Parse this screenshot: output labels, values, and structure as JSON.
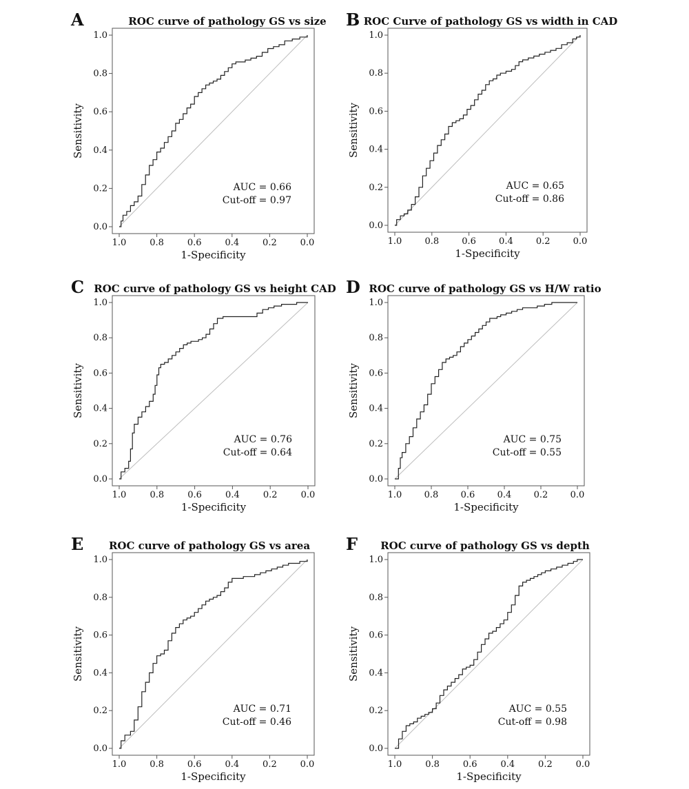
{
  "chart_data": [
    {
      "panel": "A",
      "type": "line",
      "title": "ROC curve of pathology GS vs size",
      "xlabel": "1-Specificity",
      "ylabel": "Sensitivity",
      "xlim": [
        1.0,
        0.0
      ],
      "ylim": [
        0.0,
        1.0
      ],
      "xticks": [
        "1.0",
        "0.8",
        "0.6",
        "0.4",
        "0.2",
        "0.0"
      ],
      "yticks": [
        "0.0",
        "0.2",
        "0.4",
        "0.6",
        "0.8",
        "1.0"
      ],
      "grid": false,
      "diagonal": true,
      "auc_text": "AUC = 0.66",
      "cutoff_text": "Cut-off = 0.97",
      "series": [
        {
          "x": [
            1.0,
            0.99,
            0.98,
            0.96,
            0.94,
            0.92,
            0.9,
            0.88,
            0.86,
            0.84,
            0.82,
            0.8,
            0.78,
            0.76,
            0.74,
            0.72,
            0.7,
            0.68,
            0.66,
            0.64,
            0.62,
            0.6,
            0.58,
            0.56,
            0.54,
            0.52,
            0.5,
            0.48,
            0.46,
            0.44,
            0.42,
            0.4,
            0.38,
            0.36,
            0.33,
            0.3,
            0.27,
            0.24,
            0.21,
            0.18,
            0.15,
            0.12,
            0.08,
            0.04,
            0.02,
            0.0
          ],
          "y": [
            0.0,
            0.03,
            0.06,
            0.08,
            0.11,
            0.13,
            0.16,
            0.22,
            0.27,
            0.32,
            0.35,
            0.39,
            0.41,
            0.44,
            0.47,
            0.5,
            0.54,
            0.56,
            0.59,
            0.62,
            0.64,
            0.68,
            0.7,
            0.72,
            0.74,
            0.75,
            0.76,
            0.77,
            0.79,
            0.81,
            0.83,
            0.85,
            0.86,
            0.86,
            0.87,
            0.88,
            0.89,
            0.91,
            0.93,
            0.94,
            0.95,
            0.97,
            0.98,
            0.99,
            0.99,
            1.0
          ]
        }
      ]
    },
    {
      "panel": "B",
      "type": "line",
      "title": "ROC Curve of pathology GS vs width in CAD",
      "xlabel": "1-Specificity",
      "ylabel": "Sensitivity",
      "xlim": [
        1.0,
        0.0
      ],
      "ylim": [
        0.0,
        1.0
      ],
      "xticks": [
        "1.0",
        "0.8",
        "0.6",
        "0.4",
        "0.2",
        "0.0"
      ],
      "yticks": [
        "0.0",
        "0.2",
        "0.4",
        "0.6",
        "0.8",
        "1.0"
      ],
      "grid": false,
      "diagonal": true,
      "auc_text": "AUC = 0.65",
      "cutoff_text": "Cut-off = 0.86",
      "series": [
        {
          "x": [
            1.0,
            0.99,
            0.97,
            0.95,
            0.93,
            0.91,
            0.89,
            0.87,
            0.85,
            0.83,
            0.81,
            0.79,
            0.77,
            0.75,
            0.73,
            0.71,
            0.69,
            0.67,
            0.65,
            0.63,
            0.61,
            0.59,
            0.57,
            0.55,
            0.53,
            0.51,
            0.49,
            0.47,
            0.45,
            0.43,
            0.4,
            0.37,
            0.35,
            0.33,
            0.31,
            0.28,
            0.25,
            0.22,
            0.19,
            0.16,
            0.13,
            0.1,
            0.07,
            0.04,
            0.02,
            0.0
          ],
          "y": [
            0.0,
            0.03,
            0.05,
            0.06,
            0.08,
            0.11,
            0.15,
            0.2,
            0.26,
            0.3,
            0.34,
            0.38,
            0.42,
            0.45,
            0.48,
            0.52,
            0.54,
            0.55,
            0.56,
            0.58,
            0.61,
            0.63,
            0.66,
            0.69,
            0.71,
            0.74,
            0.76,
            0.77,
            0.79,
            0.8,
            0.81,
            0.82,
            0.84,
            0.86,
            0.87,
            0.88,
            0.89,
            0.9,
            0.91,
            0.92,
            0.93,
            0.95,
            0.96,
            0.98,
            0.99,
            1.0
          ]
        }
      ]
    },
    {
      "panel": "C",
      "type": "line",
      "title": "ROC curve of pathology GS vs height CAD",
      "xlabel": "1-Specificity",
      "ylabel": "Sensitivity",
      "xlim": [
        1.0,
        0.0
      ],
      "ylim": [
        0.0,
        1.0
      ],
      "xticks": [
        "1.0",
        "0.8",
        "0.6",
        "0.4",
        "0.2",
        "0.0"
      ],
      "yticks": [
        "0.0",
        "0.2",
        "0.4",
        "0.6",
        "0.8",
        "1.0"
      ],
      "grid": false,
      "diagonal": true,
      "auc_text": "AUC = 0.76",
      "cutoff_text": "Cut-off = 0.64",
      "series": [
        {
          "x": [
            1.0,
            0.99,
            0.97,
            0.95,
            0.94,
            0.93,
            0.92,
            0.9,
            0.88,
            0.86,
            0.84,
            0.82,
            0.81,
            0.8,
            0.79,
            0.78,
            0.76,
            0.74,
            0.72,
            0.7,
            0.68,
            0.66,
            0.64,
            0.62,
            0.6,
            0.58,
            0.56,
            0.54,
            0.52,
            0.5,
            0.48,
            0.45,
            0.4,
            0.35,
            0.3,
            0.27,
            0.24,
            0.21,
            0.18,
            0.14,
            0.1,
            0.06,
            0.02,
            0.0
          ],
          "y": [
            0.0,
            0.04,
            0.06,
            0.1,
            0.17,
            0.26,
            0.31,
            0.35,
            0.38,
            0.41,
            0.44,
            0.48,
            0.53,
            0.59,
            0.63,
            0.65,
            0.66,
            0.68,
            0.7,
            0.72,
            0.74,
            0.76,
            0.77,
            0.78,
            0.78,
            0.79,
            0.8,
            0.82,
            0.85,
            0.88,
            0.91,
            0.92,
            0.92,
            0.92,
            0.92,
            0.94,
            0.96,
            0.97,
            0.98,
            0.99,
            0.99,
            1.0,
            1.0,
            1.0
          ]
        }
      ]
    },
    {
      "panel": "D",
      "type": "line",
      "title": "ROC curve of pathology GS vs H/W ratio",
      "xlabel": "1-Specificity",
      "ylabel": "Sensitivity",
      "xlim": [
        1.0,
        0.0
      ],
      "ylim": [
        0.0,
        1.0
      ],
      "xticks": [
        "1.0",
        "0.8",
        "0.6",
        "0.4",
        "0.2",
        "0.0"
      ],
      "yticks": [
        "0.0",
        "0.2",
        "0.4",
        "0.6",
        "0.8",
        "1.0"
      ],
      "grid": false,
      "diagonal": true,
      "auc_text": "AUC = 0.75",
      "cutoff_text": "Cut-off = 0.55",
      "series": [
        {
          "x": [
            1.0,
            0.98,
            0.97,
            0.96,
            0.94,
            0.92,
            0.9,
            0.88,
            0.86,
            0.84,
            0.82,
            0.8,
            0.78,
            0.76,
            0.74,
            0.72,
            0.7,
            0.68,
            0.66,
            0.64,
            0.62,
            0.6,
            0.58,
            0.56,
            0.54,
            0.52,
            0.5,
            0.48,
            0.46,
            0.44,
            0.42,
            0.39,
            0.36,
            0.33,
            0.3,
            0.26,
            0.22,
            0.18,
            0.14,
            0.1,
            0.06,
            0.02,
            0.0
          ],
          "y": [
            0.0,
            0.06,
            0.12,
            0.15,
            0.2,
            0.24,
            0.29,
            0.34,
            0.38,
            0.42,
            0.48,
            0.54,
            0.58,
            0.62,
            0.66,
            0.68,
            0.69,
            0.7,
            0.72,
            0.75,
            0.77,
            0.79,
            0.81,
            0.83,
            0.85,
            0.87,
            0.89,
            0.91,
            0.91,
            0.92,
            0.93,
            0.94,
            0.95,
            0.96,
            0.97,
            0.97,
            0.98,
            0.99,
            1.0,
            1.0,
            1.0,
            1.0,
            1.0
          ]
        }
      ]
    },
    {
      "panel": "E",
      "type": "line",
      "title": "ROC curve of pathology GS vs area",
      "xlabel": "1-Specificity",
      "ylabel": "Sensitivity",
      "xlim": [
        1.0,
        0.0
      ],
      "ylim": [
        0.0,
        1.0
      ],
      "xticks": [
        "1.0",
        "0.8",
        "0.6",
        "0.4",
        "0.2",
        "0.0"
      ],
      "yticks": [
        "0.0",
        "0.2",
        "0.4",
        "0.6",
        "0.8",
        "1.0"
      ],
      "grid": false,
      "diagonal": true,
      "auc_text": "AUC = 0.71",
      "cutoff_text": "Cut-off = 0.46",
      "series": [
        {
          "x": [
            1.0,
            0.99,
            0.97,
            0.94,
            0.92,
            0.9,
            0.88,
            0.86,
            0.84,
            0.82,
            0.8,
            0.78,
            0.76,
            0.74,
            0.72,
            0.7,
            0.68,
            0.66,
            0.64,
            0.62,
            0.6,
            0.58,
            0.56,
            0.54,
            0.52,
            0.5,
            0.48,
            0.46,
            0.44,
            0.42,
            0.4,
            0.37,
            0.34,
            0.31,
            0.28,
            0.25,
            0.22,
            0.19,
            0.16,
            0.13,
            0.1,
            0.07,
            0.04,
            0.02,
            0.0
          ],
          "y": [
            0.0,
            0.04,
            0.07,
            0.09,
            0.15,
            0.22,
            0.3,
            0.35,
            0.4,
            0.45,
            0.49,
            0.5,
            0.52,
            0.57,
            0.61,
            0.64,
            0.66,
            0.68,
            0.69,
            0.7,
            0.72,
            0.74,
            0.76,
            0.78,
            0.79,
            0.8,
            0.81,
            0.83,
            0.85,
            0.88,
            0.9,
            0.9,
            0.91,
            0.91,
            0.92,
            0.93,
            0.94,
            0.95,
            0.96,
            0.97,
            0.98,
            0.98,
            0.99,
            0.99,
            1.0
          ]
        }
      ]
    },
    {
      "panel": "F",
      "type": "line",
      "title": "ROC curve of pathology GS vs depth",
      "xlabel": "1-Specificity",
      "ylabel": "Sensitivity",
      "xlim": [
        1.0,
        0.0
      ],
      "ylim": [
        0.0,
        1.0
      ],
      "xticks": [
        "1.0",
        "0.8",
        "0.6",
        "0.4",
        "0.2",
        "0.0"
      ],
      "yticks": [
        "0.0",
        "0.2",
        "0.4",
        "0.6",
        "0.8",
        "1.0"
      ],
      "grid": false,
      "diagonal": true,
      "auc_text": "AUC = 0.55",
      "cutoff_text": "Cut-off = 0.98",
      "series": [
        {
          "x": [
            1.0,
            0.98,
            0.96,
            0.94,
            0.92,
            0.9,
            0.88,
            0.86,
            0.84,
            0.82,
            0.8,
            0.78,
            0.76,
            0.74,
            0.72,
            0.7,
            0.68,
            0.66,
            0.64,
            0.62,
            0.6,
            0.58,
            0.56,
            0.54,
            0.52,
            0.5,
            0.48,
            0.46,
            0.44,
            0.42,
            0.4,
            0.38,
            0.36,
            0.34,
            0.32,
            0.3,
            0.28,
            0.26,
            0.24,
            0.22,
            0.2,
            0.17,
            0.14,
            0.11,
            0.08,
            0.05,
            0.03,
            0.0
          ],
          "y": [
            0.0,
            0.05,
            0.09,
            0.12,
            0.13,
            0.14,
            0.16,
            0.17,
            0.18,
            0.19,
            0.21,
            0.24,
            0.28,
            0.31,
            0.33,
            0.35,
            0.37,
            0.39,
            0.42,
            0.43,
            0.44,
            0.47,
            0.51,
            0.55,
            0.58,
            0.61,
            0.62,
            0.64,
            0.66,
            0.68,
            0.72,
            0.76,
            0.81,
            0.86,
            0.88,
            0.89,
            0.9,
            0.91,
            0.92,
            0.93,
            0.94,
            0.95,
            0.96,
            0.97,
            0.98,
            0.99,
            1.0,
            1.0
          ]
        }
      ]
    }
  ]
}
